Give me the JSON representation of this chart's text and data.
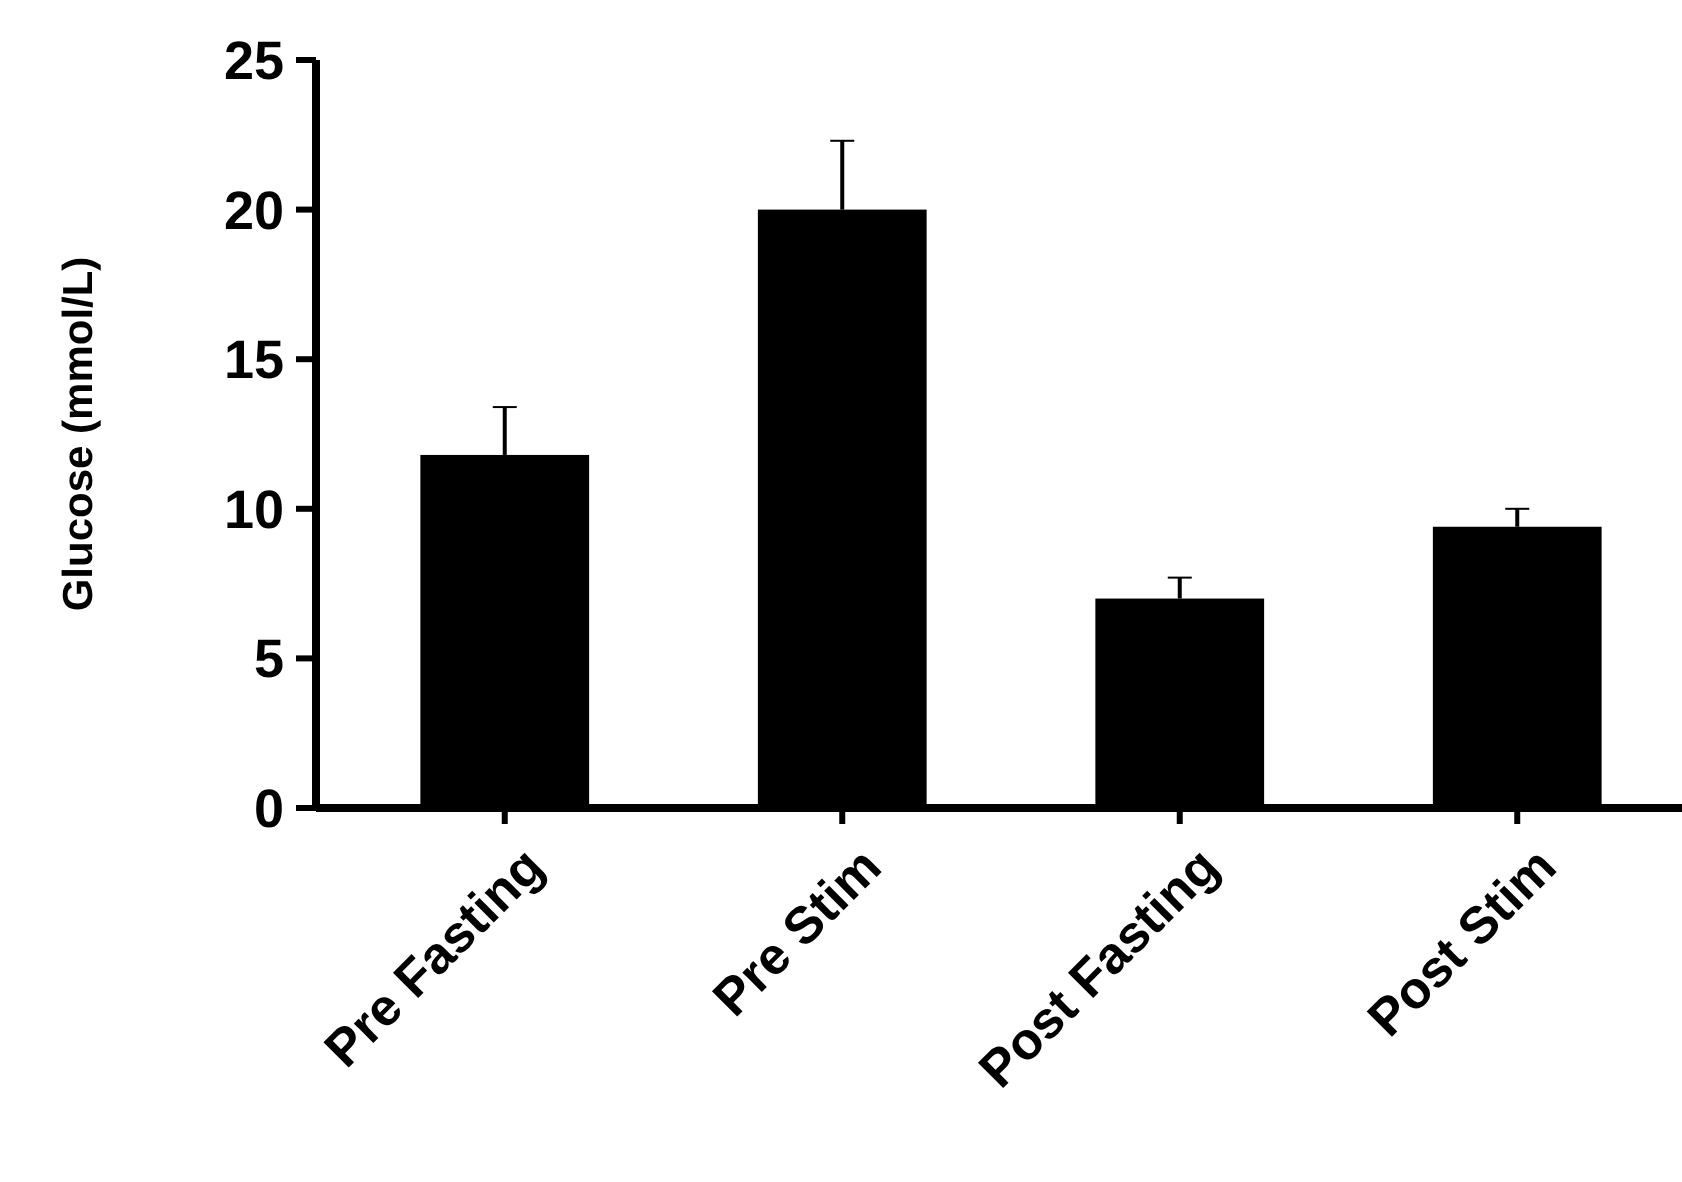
{
  "chart_data": {
    "type": "bar",
    "ylabel": "Glucose (mmol/L)",
    "categories": [
      "Pre Fasting",
      "Pre Stim",
      "Post Fasting",
      "Post Stim"
    ],
    "values": [
      11.8,
      20.0,
      7.0,
      9.4
    ],
    "errors": [
      [
        11.8,
        13.4
      ],
      [
        20.0,
        22.3
      ],
      [
        7.0,
        7.7
      ],
      [
        9.4,
        10.0
      ]
    ],
    "color": "#000000",
    "ylim": [
      0,
      25
    ],
    "yticks": [
      0,
      5,
      10,
      15,
      20,
      25
    ],
    "grid": false
  }
}
